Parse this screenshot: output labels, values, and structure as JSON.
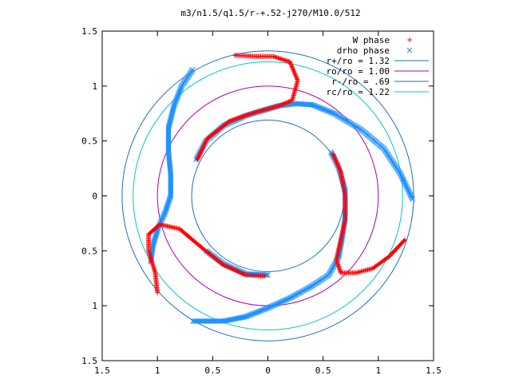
{
  "chart_data": {
    "type": "scatter",
    "title": "m3/n1.5/q1.5/r-+.52-j270/M10.0/512",
    "xlabel": "",
    "ylabel": "",
    "xlim": [
      -1.5,
      1.5
    ],
    "ylim": [
      -1.5,
      1.5
    ],
    "x_ticks": [
      -1.5,
      -1,
      -0.5,
      0,
      0.5,
      1,
      1.5
    ],
    "y_ticks": [
      -1.5,
      -1,
      -0.5,
      0,
      0.5,
      1,
      1.5
    ],
    "x_tick_labels": [
      "1.5",
      "1",
      "0.5",
      "0",
      "0.5",
      "1",
      "1.5"
    ],
    "y_tick_labels": [
      "1.5",
      "1",
      "0.5",
      "0",
      "0.5",
      "1",
      "1.5"
    ],
    "grid": false,
    "legend_position": "top-right",
    "legend": [
      {
        "label": "W phase",
        "marker": "+",
        "color": "#ff0000"
      },
      {
        "label": "drho phase",
        "marker": "x",
        "color": "#1e90ff"
      },
      {
        "label": "r+/ro = 1.32",
        "marker": "line",
        "color": "#1f6fbf"
      },
      {
        "label": "ro/ro = 1.00",
        "marker": "line",
        "color": "#b000b0"
      },
      {
        "label": "r-/ro = .69",
        "marker": "line",
        "color": "#1f6fbf"
      },
      {
        "label": "rc/ro = 1.22",
        "marker": "line",
        "color": "#00c8c8"
      }
    ],
    "circles": [
      {
        "name": "r+/ro = 1.32",
        "radius": 1.32,
        "color": "#1f6fbf"
      },
      {
        "name": "ro/ro = 1.00",
        "radius": 1.0,
        "color": "#b000b0"
      },
      {
        "name": "r-/ro = .69",
        "radius": 0.69,
        "color": "#1f6fbf"
      },
      {
        "name": "rc/ro = 1.22",
        "radius": 1.22,
        "color": "#00c8c8"
      }
    ],
    "series": [
      {
        "name": "W phase",
        "marker": "+",
        "color": "#ff0000",
        "arms": [
          [
            [
              -0.64,
              0.33
            ],
            [
              -0.55,
              0.52
            ],
            [
              -0.35,
              0.68
            ],
            [
              -0.12,
              0.76
            ],
            [
              0.1,
              0.82
            ],
            [
              0.22,
              0.87
            ],
            [
              0.27,
              1.05
            ],
            [
              0.2,
              1.22
            ],
            [
              0.05,
              1.27
            ],
            [
              -0.1,
              1.27
            ],
            [
              -0.3,
              1.28
            ]
          ],
          [
            [
              0.59,
              0.38
            ],
            [
              0.66,
              0.22
            ],
            [
              0.7,
              0.0
            ],
            [
              0.7,
              -0.22
            ],
            [
              0.66,
              -0.4
            ],
            [
              0.62,
              -0.58
            ],
            [
              0.66,
              -0.7
            ],
            [
              0.8,
              -0.7
            ],
            [
              0.95,
              -0.66
            ],
            [
              1.1,
              -0.55
            ],
            [
              1.24,
              -0.4
            ]
          ],
          [
            [
              -0.03,
              -0.73
            ],
            [
              -0.2,
              -0.72
            ],
            [
              -0.4,
              -0.63
            ],
            [
              -0.6,
              -0.47
            ],
            [
              -0.8,
              -0.3
            ],
            [
              -0.98,
              -0.26
            ],
            [
              -1.08,
              -0.35
            ],
            [
              -1.08,
              -0.5
            ],
            [
              -1.02,
              -0.7
            ],
            [
              -1.0,
              -0.88
            ]
          ]
        ]
      },
      {
        "name": "drho phase",
        "marker": "x",
        "color": "#1e90ff",
        "arms": [
          [
            [
              -0.68,
              1.15
            ],
            [
              -0.78,
              1.0
            ],
            [
              -0.85,
              0.82
            ],
            [
              -0.9,
              0.62
            ],
            [
              -0.9,
              0.4
            ],
            [
              -0.88,
              0.2
            ],
            [
              -0.88,
              0.0
            ],
            [
              -0.93,
              -0.15
            ],
            [
              -0.99,
              -0.28
            ],
            [
              -1.04,
              -0.45
            ],
            [
              -1.06,
              -0.6
            ]
          ],
          [
            [
              -0.65,
              0.33
            ],
            [
              -0.56,
              0.5
            ],
            [
              -0.4,
              0.64
            ],
            [
              -0.2,
              0.73
            ],
            [
              0.0,
              0.79
            ],
            [
              0.1,
              0.82
            ],
            [
              0.25,
              0.84
            ],
            [
              0.4,
              0.83
            ],
            [
              0.6,
              0.75
            ],
            [
              0.85,
              0.6
            ],
            [
              1.05,
              0.43
            ],
            [
              1.2,
              0.2
            ],
            [
              1.31,
              -0.03
            ]
          ],
          [
            [
              0.57,
              0.4
            ],
            [
              0.64,
              0.26
            ],
            [
              0.7,
              0.05
            ],
            [
              0.7,
              -0.2
            ],
            [
              0.67,
              -0.4
            ],
            [
              0.64,
              -0.56
            ],
            [
              0.55,
              -0.72
            ],
            [
              0.4,
              -0.82
            ],
            [
              0.2,
              -0.93
            ],
            [
              0.0,
              -1.02
            ],
            [
              -0.2,
              -1.1
            ],
            [
              -0.4,
              -1.14
            ],
            [
              -0.68,
              -1.14
            ]
          ],
          [
            [
              0.0,
              -0.72
            ],
            [
              -0.2,
              -0.71
            ],
            [
              -0.4,
              -0.62
            ],
            [
              -0.56,
              -0.5
            ]
          ]
        ]
      }
    ]
  }
}
